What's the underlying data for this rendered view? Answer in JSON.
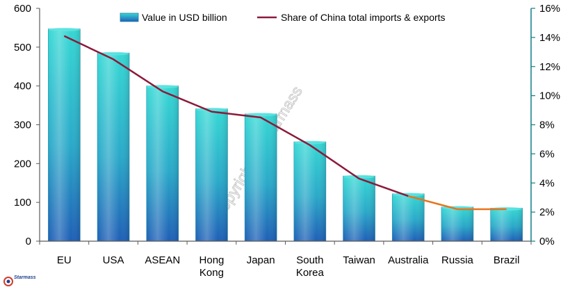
{
  "chart_data": {
    "type": "bar",
    "categories": [
      [
        "EU"
      ],
      [
        "USA"
      ],
      [
        "ASEAN"
      ],
      [
        "Hong",
        "Kong"
      ],
      [
        "Japan"
      ],
      [
        "South",
        "Korea"
      ],
      [
        "Taiwan"
      ],
      [
        "Australia"
      ],
      [
        "Russia"
      ],
      [
        "Brazil"
      ]
    ],
    "series": [
      {
        "name": "Value in USD billion",
        "type": "bar",
        "axis": "left",
        "values": [
          547,
          485,
          400,
          341,
          328,
          256,
          168,
          122,
          88,
          85
        ]
      },
      {
        "name": "Share of China total imports & exports",
        "type": "line",
        "axis": "right",
        "values": [
          14.1,
          12.5,
          10.3,
          8.9,
          8.5,
          6.6,
          4.3,
          3.1,
          2.2,
          2.2
        ]
      }
    ],
    "y_left": {
      "min": 0,
      "max": 600,
      "ticks": [
        0,
        100,
        200,
        300,
        400,
        500,
        600
      ]
    },
    "y_right": {
      "min": 0,
      "max": 16,
      "ticks": [
        "0%",
        "2%",
        "4%",
        "6%",
        "8%",
        "10%",
        "12%",
        "14%",
        "16%"
      ]
    },
    "legend_position": "top",
    "grid": false,
    "colors": {
      "bar_top": "#33d6d2",
      "bar_bottom": "#1f63b8",
      "line_main": "#8b1a3a",
      "line_tail": "#e8731a",
      "axis_right": "#0f7f86",
      "axis_left": "#5a5a5a"
    }
  },
  "watermark": "Copyright @ Starmass",
  "logo": {
    "text": "Starmass"
  }
}
